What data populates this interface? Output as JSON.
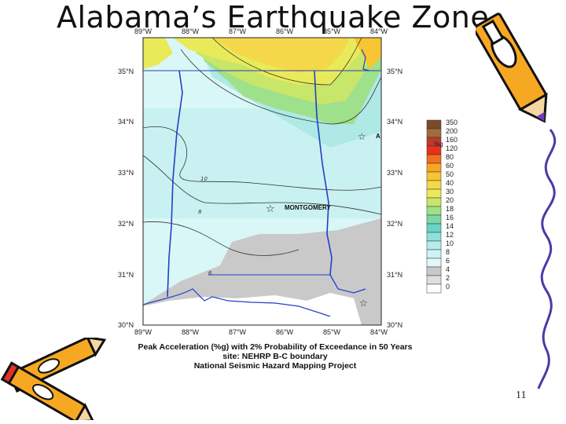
{
  "slide": {
    "title": "Alabama’s Earthquake Zone",
    "page_number": "11"
  },
  "map": {
    "top_lon_labels": [
      "89°W",
      "88°W",
      "87°W",
      "86°W",
      "85°W",
      "84°W"
    ],
    "bottom_lon_labels": [
      "89°W",
      "88°W",
      "87°W",
      "86°W",
      "85°W",
      "84°W"
    ],
    "left_lat_labels": [
      "35°N",
      "34°N",
      "33°N",
      "32°N",
      "31°N",
      "30°N"
    ],
    "right_lat_labels": [
      "35°N",
      "34°N",
      "33°N",
      "32°N",
      "31°N",
      "30°N"
    ],
    "city_label": "MONTGOMERY",
    "city_label_b": "A",
    "contour_labels": [
      "10",
      "8",
      "6"
    ],
    "legend_unit": "%g",
    "legend_values": [
      "350",
      "200",
      "160",
      "120",
      "80",
      "60",
      "50",
      "40",
      "30",
      "20",
      "18",
      "16",
      "14",
      "12",
      "10",
      "8",
      "6",
      "4",
      "2",
      "0"
    ],
    "legend_colors": [
      "#7a4a2a",
      "#a06c3c",
      "#c0392b",
      "#e8301e",
      "#f07020",
      "#f5a623",
      "#f7c531",
      "#f5d84a",
      "#e9ea5a",
      "#c7e66a",
      "#9fe08a",
      "#79d9a8",
      "#66d6c4",
      "#8fe0dc",
      "#b5ecec",
      "#cdf3f3",
      "#e2f8f8",
      "#c9c9c9",
      "#dedede",
      "#ffffff"
    ],
    "caption_lines": [
      "Peak Acceleration (%g) with 2% Probability of Exceedance in 50 Years",
      "site: NEHRP B-C boundary",
      "National Seismic Hazard Mapping Project"
    ]
  },
  "decorations": [
    "pencil-icon",
    "pencils-icon",
    "curly-line"
  ]
}
